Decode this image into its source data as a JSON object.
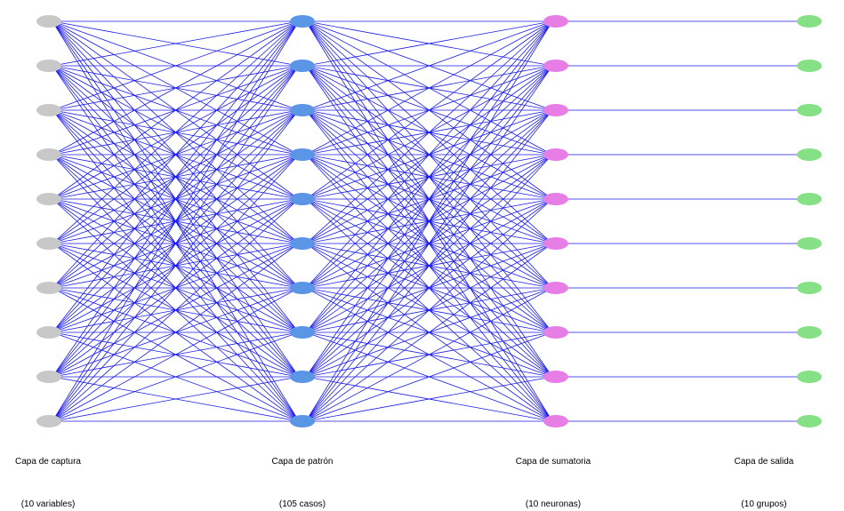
{
  "layers": [
    {
      "name": "Capa de captura",
      "count": "(10 variables)",
      "nodes": 10,
      "color": "#c8c8c8"
    },
    {
      "name": "Capa de patrón",
      "count": "(105 casos)",
      "nodes": 10,
      "color": "#5a95e6"
    },
    {
      "name": "Capa de sumatoria",
      "count": "(10 neuronas)",
      "nodes": 10,
      "color": "#e67ee6"
    },
    {
      "name": "Capa de salida",
      "count": "(10 grupos)",
      "nodes": 10,
      "color": "#86e086"
    }
  ],
  "connections": [
    {
      "from": 0,
      "to": 1,
      "pattern": "full"
    },
    {
      "from": 1,
      "to": 2,
      "pattern": "full"
    },
    {
      "from": 2,
      "to": 3,
      "pattern": "one-to-one"
    }
  ],
  "edge_color": "#1a1aee"
}
